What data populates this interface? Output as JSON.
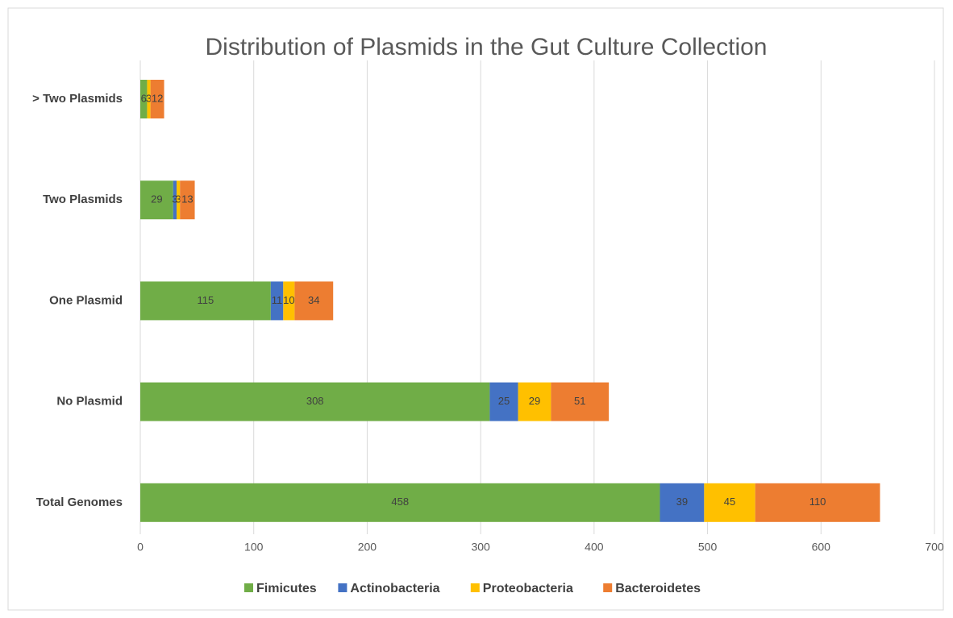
{
  "chart_data": {
    "type": "stacked_bar_horizontal",
    "title": "Distribution of Plasmids in the Gut Culture Collection",
    "categories": [
      "> Two Plasmids",
      "Two Plasmids",
      "One Plasmid",
      "No Plasmid",
      "Total Genomes"
    ],
    "series": [
      {
        "name": "Fimicutes",
        "color": "#70ad47",
        "values": [
          6,
          29,
          115,
          308,
          458
        ]
      },
      {
        "name": "Actinobacteria",
        "color": "#4472c4",
        "values": [
          null,
          3,
          11,
          25,
          39
        ]
      },
      {
        "name": "Proteobacteria",
        "color": "#ffc000",
        "values": [
          3,
          3,
          10,
          29,
          45
        ]
      },
      {
        "name": "Bacteroidetes",
        "color": "#ed7d31",
        "values": [
          12,
          13,
          34,
          51,
          110
        ]
      }
    ],
    "xlim": [
      0,
      700
    ],
    "xticks": [
      0,
      100,
      200,
      300,
      400,
      500,
      600,
      700
    ],
    "grid": true,
    "legend": "bottom"
  }
}
